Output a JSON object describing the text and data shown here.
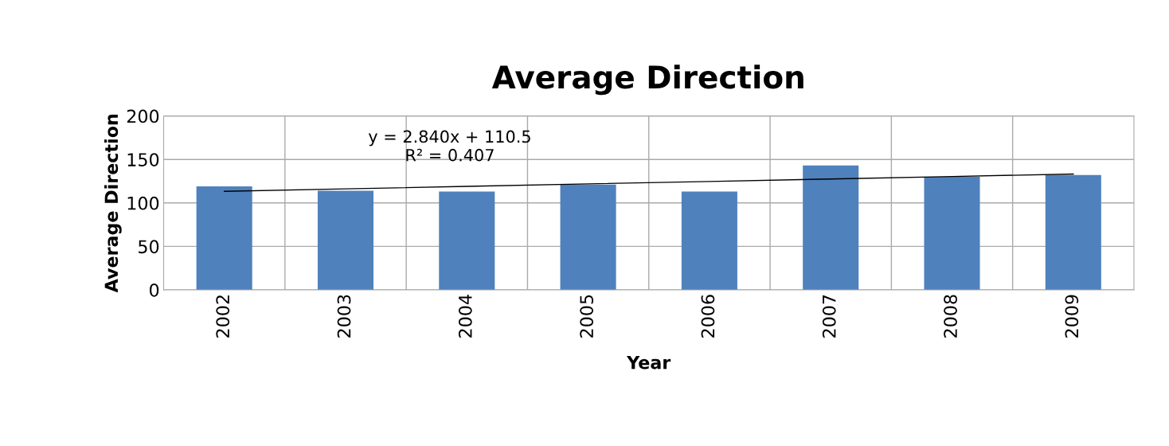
{
  "chart_data": {
    "type": "bar",
    "title": "Average Direction",
    "xlabel": "Year",
    "ylabel": "Average Direction",
    "categories": [
      "2002",
      "2003",
      "2004",
      "2005",
      "2006",
      "2007",
      "2008",
      "2009"
    ],
    "series": [
      {
        "color": "#4f81bd",
        "values": [
          119,
          114,
          113,
          121,
          113,
          143,
          130,
          132
        ]
      },
      {
        "type": "line",
        "color": "#000000",
        "values": [
          113.3,
          116.2,
          119.0,
          121.9,
          124.7,
          127.5,
          130.4,
          133.2
        ]
      }
    ],
    "ylim": [
      0,
      200
    ],
    "yticks": [
      0,
      50,
      100,
      150,
      200
    ],
    "grid": true,
    "annotations": [
      "y = 2.840x + 110.5\nR² = 0.407"
    ]
  }
}
